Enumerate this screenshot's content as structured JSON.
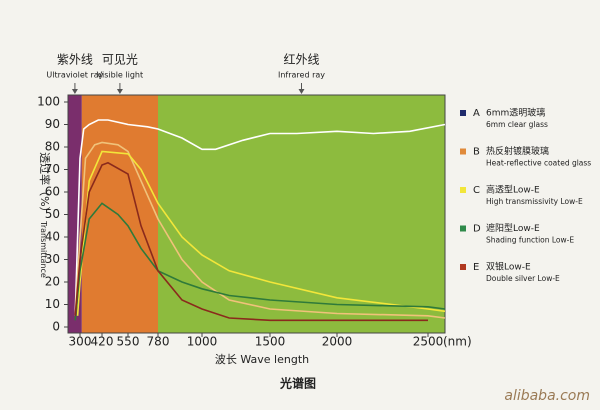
{
  "chart_data": {
    "type": "line",
    "title": "光谱图",
    "y_label_cn": "透过率（%）",
    "y_label_en": "Transmittance",
    "x_label": "波长 Wave length",
    "x_unit": "(nm)",
    "xlim": [
      250,
      2600
    ],
    "xticks": [
      300,
      420,
      550,
      780,
      1000,
      1500,
      2000,
      2500
    ],
    "ylim": [
      0,
      100
    ],
    "yticks": [
      0,
      10,
      20,
      30,
      40,
      50,
      60,
      70,
      80,
      90,
      100
    ],
    "regions": [
      {
        "name_cn": "紫外线",
        "name_en": "Ultraviolet ray",
        "range": [
          250,
          310
        ],
        "color": "#7a2e6c"
      },
      {
        "name_cn": "可见光",
        "name_en": "Visible light",
        "range": [
          310,
          780
        ],
        "color": "#e07b30"
      },
      {
        "name_cn": "红外线",
        "name_en": "Infrared ray",
        "range": [
          780,
          2600
        ],
        "color": "#8dbb3e"
      }
    ],
    "series": [
      {
        "label": "A",
        "name": "6mm透明玻璃",
        "name_en": "6mm clear glass",
        "color": "#ffffff",
        "swatch": "#1f2a6b",
        "x": [
          280,
          300,
          320,
          350,
          400,
          450,
          550,
          700,
          780,
          900,
          1000,
          1100,
          1300,
          1500,
          1700,
          2000,
          2200,
          2400,
          2600
        ],
        "values": [
          5,
          75,
          88,
          90,
          92,
          92,
          90,
          89,
          88,
          84,
          79,
          79,
          83,
          86,
          86,
          87,
          86,
          87,
          90
        ]
      },
      {
        "label": "B",
        "name": "热反射镀膜玻璃",
        "name_en": "Heat-reflective coated glass",
        "color": "#f0c27a",
        "swatch": "#e08a3a",
        "x": [
          280,
          300,
          330,
          380,
          420,
          500,
          550,
          650,
          780,
          900,
          1000,
          1200,
          1500,
          2000,
          2500,
          2600
        ],
        "values": [
          5,
          40,
          75,
          81,
          82,
          81,
          78,
          65,
          48,
          30,
          20,
          12,
          8,
          6,
          5,
          4
        ]
      },
      {
        "label": "C",
        "name": "高透型Low-E",
        "name_en": "High transmissivity Low-E",
        "color": "#f2e63a",
        "swatch": "#f2e63a",
        "x": [
          290,
          300,
          350,
          420,
          550,
          650,
          780,
          900,
          1000,
          1200,
          1500,
          2000,
          2500,
          2600
        ],
        "values": [
          5,
          20,
          65,
          78,
          77,
          70,
          55,
          40,
          32,
          25,
          20,
          13,
          8,
          7
        ]
      },
      {
        "label": "D",
        "name": "遮阳型Low-E",
        "name_en": "Shading function Low-E",
        "color": "#2f7a3a",
        "swatch": "#2f8a4a",
        "x": [
          280,
          300,
          350,
          420,
          500,
          550,
          650,
          780,
          900,
          1000,
          1200,
          1500,
          2000,
          2500,
          2600
        ],
        "values": [
          3,
          25,
          48,
          55,
          50,
          45,
          35,
          25,
          20,
          17,
          14,
          12,
          10,
          9,
          8
        ]
      },
      {
        "label": "E",
        "name": "双银Low-E",
        "name_en": "Double silver Low-E",
        "color": "#8a2a1c",
        "swatch": "#b0381f",
        "x": [
          280,
          300,
          350,
          420,
          450,
          550,
          650,
          780,
          900,
          1000,
          1200,
          1500,
          2000,
          2500
        ],
        "values": [
          5,
          30,
          60,
          72,
          73,
          68,
          45,
          25,
          12,
          8,
          4,
          3,
          3,
          3
        ]
      }
    ]
  },
  "footer": {
    "watermark": "alibaba.com"
  }
}
